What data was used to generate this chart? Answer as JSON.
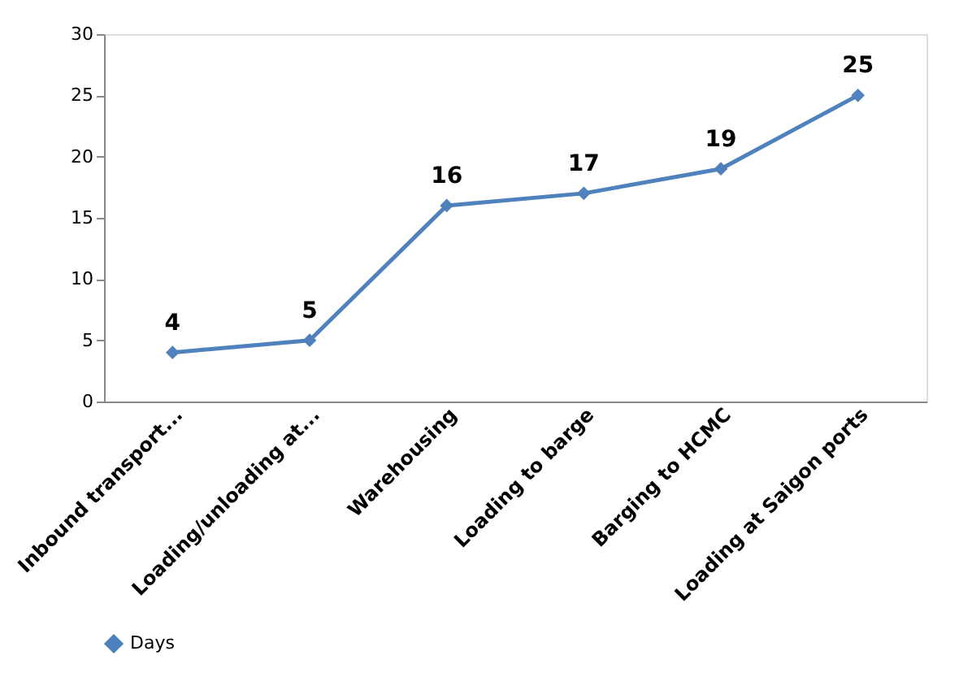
{
  "chart_data": {
    "type": "line",
    "categories": [
      "Inbound transport...",
      "Loading/unloading at...",
      "Warehousing",
      "Loading to barge",
      "Barging to HCMC",
      "Loading at Saigon ports"
    ],
    "series": [
      {
        "name": "Days",
        "color": "#4f81bd",
        "values": [
          4,
          5,
          16,
          17,
          19,
          25
        ]
      }
    ],
    "ylim": [
      0,
      30
    ],
    "yticks": [
      0,
      5,
      10,
      15,
      20,
      25,
      30
    ],
    "grid": false,
    "legend": "bottom",
    "marker": "diamond",
    "line_style": "solid",
    "data_labels": true
  }
}
